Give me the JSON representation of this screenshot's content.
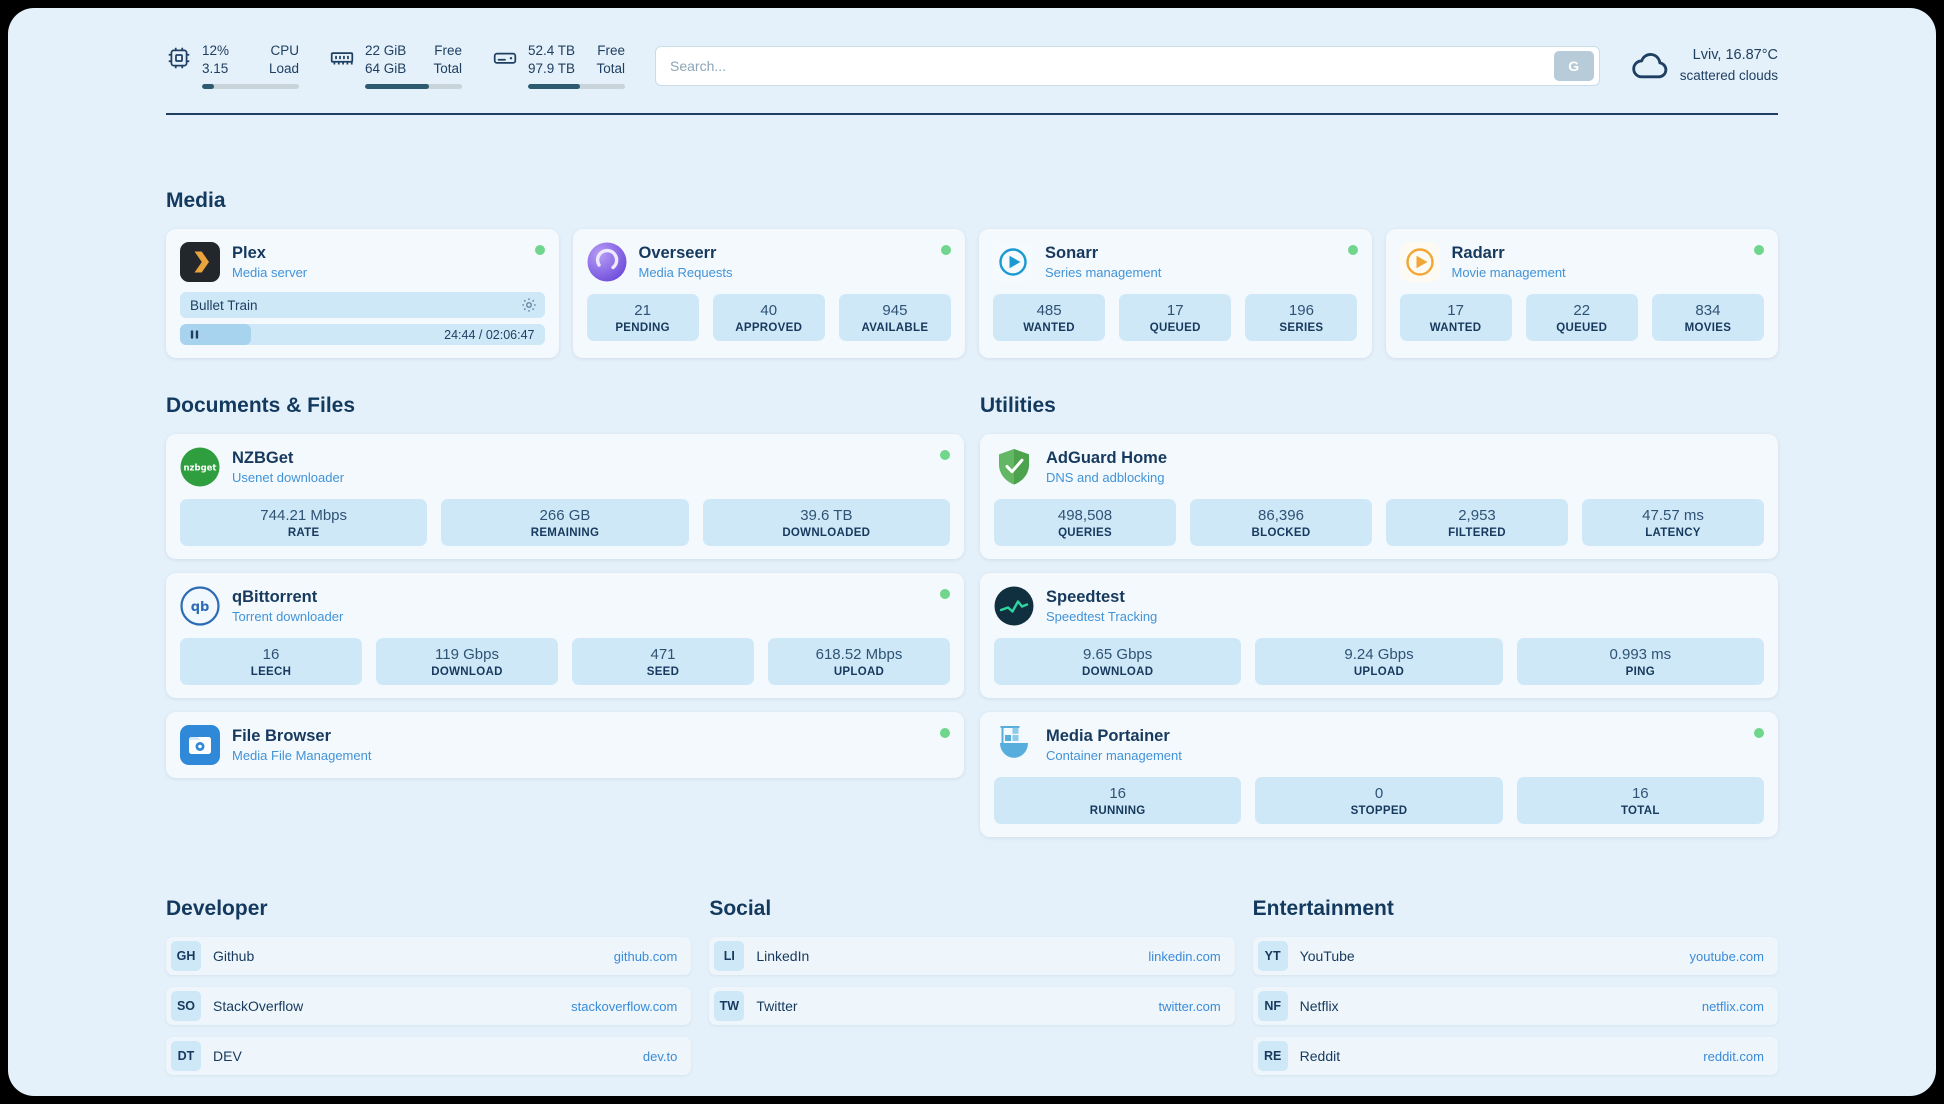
{
  "topbar": {
    "cpu": {
      "value_top": "12%",
      "value_bottom": "3.15",
      "label_top": "CPU",
      "label_bottom": "Load",
      "progress_percent": 12
    },
    "memory": {
      "value_top": "22 GiB",
      "value_bottom": "64 GiB",
      "label_top": "Free",
      "label_bottom": "Total",
      "progress_percent": 66
    },
    "storage": {
      "value_top": "52.4 TB",
      "value_bottom": "97.9 TB",
      "label_top": "Free",
      "label_bottom": "Total",
      "progress_percent": 54
    },
    "search": {
      "placeholder": "Search...",
      "engine_button": "G"
    },
    "weather": {
      "location_temp": "Lviv, 16.87°C",
      "condition": "scattered clouds"
    }
  },
  "sections": {
    "media": "Media",
    "documents": "Documents & Files",
    "utilities": "Utilities",
    "developer": "Developer",
    "social": "Social",
    "entertainment": "Entertainment"
  },
  "apps": {
    "plex": {
      "name": "Plex",
      "subtitle": "Media server",
      "now_playing_title": "Bullet Train",
      "time_display": "24:44 / 02:06:47",
      "progress_percent": 19.5
    },
    "overseerr": {
      "name": "Overseerr",
      "subtitle": "Media Requests",
      "stats": [
        {
          "value": "21",
          "label": "PENDING"
        },
        {
          "value": "40",
          "label": "APPROVED"
        },
        {
          "value": "945",
          "label": "AVAILABLE"
        }
      ]
    },
    "sonarr": {
      "name": "Sonarr",
      "subtitle": "Series management",
      "stats": [
        {
          "value": "485",
          "label": "WANTED"
        },
        {
          "value": "17",
          "label": "QUEUED"
        },
        {
          "value": "196",
          "label": "SERIES"
        }
      ]
    },
    "radarr": {
      "name": "Radarr",
      "subtitle": "Movie management",
      "stats": [
        {
          "value": "17",
          "label": "WANTED"
        },
        {
          "value": "22",
          "label": "QUEUED"
        },
        {
          "value": "834",
          "label": "MOVIES"
        }
      ]
    },
    "nzbget": {
      "name": "NZBGet",
      "subtitle": "Usenet downloader",
      "stats": [
        {
          "value": "744.21 Mbps",
          "label": "RATE"
        },
        {
          "value": "266 GB",
          "label": "REMAINING"
        },
        {
          "value": "39.6 TB",
          "label": "DOWNLOADED"
        }
      ]
    },
    "qbittorrent": {
      "name": "qBittorrent",
      "subtitle": "Torrent downloader",
      "stats": [
        {
          "value": "16",
          "label": "LEECH"
        },
        {
          "value": "119 Gbps",
          "label": "DOWNLOAD"
        },
        {
          "value": "471",
          "label": "SEED"
        },
        {
          "value": "618.52 Mbps",
          "label": "UPLOAD"
        }
      ]
    },
    "filebrowser": {
      "name": "File Browser",
      "subtitle": "Media File Management"
    },
    "adguard": {
      "name": "AdGuard Home",
      "subtitle": "DNS and adblocking",
      "stats": [
        {
          "value": "498,508",
          "label": "QUERIES"
        },
        {
          "value": "86,396",
          "label": "BLOCKED"
        },
        {
          "value": "2,953",
          "label": "FILTERED"
        },
        {
          "value": "47.57 ms",
          "label": "LATENCY"
        }
      ]
    },
    "speedtest": {
      "name": "Speedtest",
      "subtitle": "Speedtest Tracking",
      "stats": [
        {
          "value": "9.65 Gbps",
          "label": "DOWNLOAD"
        },
        {
          "value": "9.24 Gbps",
          "label": "UPLOAD"
        },
        {
          "value": "0.993 ms",
          "label": "PING"
        }
      ]
    },
    "portainer": {
      "name": "Media Portainer",
      "subtitle": "Container management",
      "stats": [
        {
          "value": "16",
          "label": "RUNNING"
        },
        {
          "value": "0",
          "label": "STOPPED"
        },
        {
          "value": "16",
          "label": "TOTAL"
        }
      ]
    }
  },
  "bookmarks": {
    "developer": [
      {
        "abbr": "GH",
        "name": "Github",
        "url": "github.com"
      },
      {
        "abbr": "SO",
        "name": "StackOverflow",
        "url": "stackoverflow.com"
      },
      {
        "abbr": "DT",
        "name": "DEV",
        "url": "dev.to"
      }
    ],
    "social": [
      {
        "abbr": "LI",
        "name": "LinkedIn",
        "url": "linkedin.com"
      },
      {
        "abbr": "TW",
        "name": "Twitter",
        "url": "twitter.com"
      }
    ],
    "entertainment": [
      {
        "abbr": "YT",
        "name": "YouTube",
        "url": "youtube.com"
      },
      {
        "abbr": "NF",
        "name": "Netflix",
        "url": "netflix.com"
      },
      {
        "abbr": "RE",
        "name": "Reddit",
        "url": "reddit.com"
      }
    ]
  },
  "colors": {
    "accent_blue": "#4293d8",
    "status_green": "#6fd68b",
    "stat_pill": "#cfe8f8",
    "navy": "#133a5e",
    "panel_bg": "#e5f1fa"
  }
}
